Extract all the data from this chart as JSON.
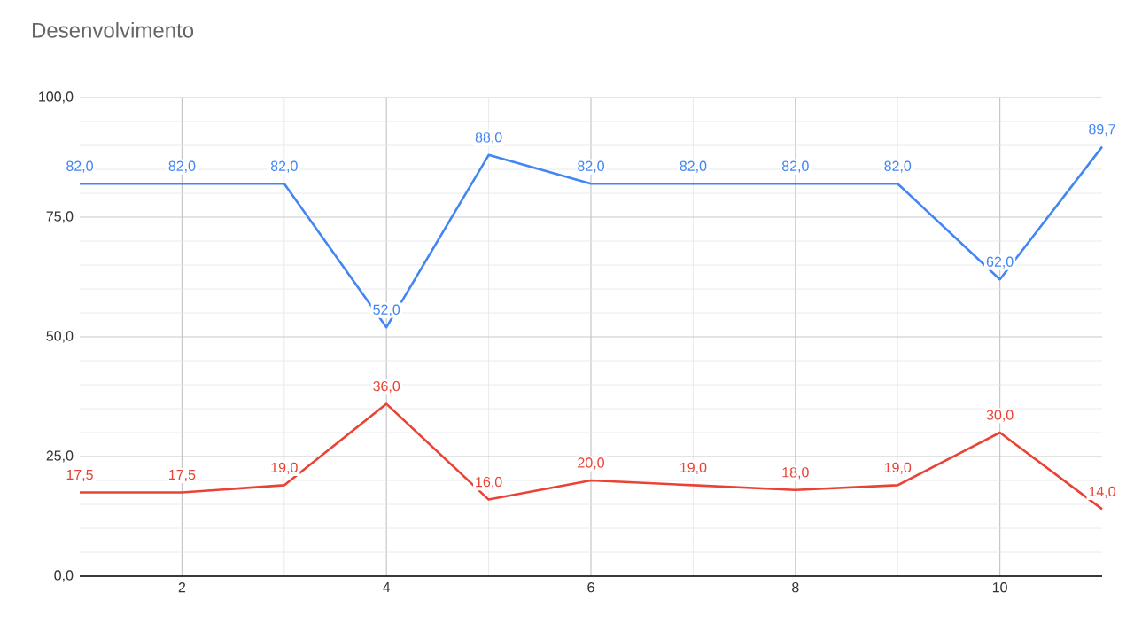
{
  "chart_data": {
    "type": "line",
    "title": "Desenvolvimento",
    "x": [
      1,
      2,
      3,
      4,
      5,
      6,
      7,
      8,
      9,
      10,
      11
    ],
    "series": [
      {
        "color": "#4285f4",
        "values": [
          82,
          82,
          82,
          52,
          88,
          82,
          82,
          82,
          82,
          62,
          89.7
        ],
        "value_labels": [
          "82,0",
          "82,0",
          "82,0",
          "52,0",
          "88,0",
          "82,0",
          "82,0",
          "82,0",
          "82,0",
          "62,0",
          "89,7"
        ]
      },
      {
        "color": "#ea4335",
        "values": [
          17.5,
          17.5,
          19,
          36,
          16,
          20,
          19,
          18,
          19,
          30,
          14
        ],
        "value_labels": [
          "17,5",
          "17,5",
          "19,0",
          "36,0",
          "16,0",
          "20,0",
          "19,0",
          "18,0",
          "19,0",
          "30,0",
          "14,0"
        ]
      }
    ],
    "xlim": [
      1,
      11
    ],
    "xticks": [
      2,
      4,
      6,
      8,
      10
    ],
    "ylim": [
      0,
      100
    ],
    "yticks": [
      {
        "value": 0,
        "label": "0,0"
      },
      {
        "value": 25,
        "label": "25,0"
      },
      {
        "value": 50,
        "label": "50,0"
      },
      {
        "value": 75,
        "label": "75,0"
      },
      {
        "value": 100,
        "label": "100,0"
      }
    ],
    "grid": true,
    "legend": false,
    "marker": "none",
    "line_style": "solid"
  }
}
